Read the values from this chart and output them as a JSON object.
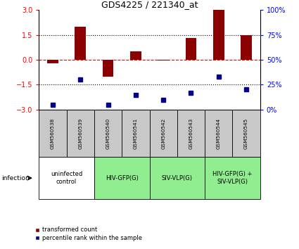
{
  "title": "GDS4225 / 221340_at",
  "samples": [
    "GSM560538",
    "GSM560539",
    "GSM560540",
    "GSM560541",
    "GSM560542",
    "GSM560543",
    "GSM560544",
    "GSM560545"
  ],
  "red_bars": [
    -0.2,
    2.0,
    -1.0,
    0.5,
    -0.05,
    1.3,
    3.0,
    1.5
  ],
  "blue_squares_pct": [
    5,
    30,
    5,
    15,
    10,
    17,
    33,
    20
  ],
  "ylim": [
    -3,
    3
  ],
  "yticks_left": [
    -3,
    -1.5,
    0,
    1.5,
    3
  ],
  "yticks_right_pct": [
    0,
    25,
    50,
    75,
    100
  ],
  "groups": [
    {
      "label": "uninfected\ncontrol",
      "start": 0,
      "end": 2,
      "color": "#ffffff"
    },
    {
      "label": "HIV-GFP(G)",
      "start": 2,
      "end": 4,
      "color": "#90ee90"
    },
    {
      "label": "SIV-VLP(G)",
      "start": 4,
      "end": 6,
      "color": "#90ee90"
    },
    {
      "label": "HIV-GFP(G) +\nSIV-VLP(G)",
      "start": 6,
      "end": 8,
      "color": "#90ee90"
    }
  ],
  "bar_color": "#8b0000",
  "square_color": "#00008b",
  "legend_label_red": "transformed count",
  "legend_label_blue": "percentile rank within the sample",
  "infection_label": "infection",
  "plot_bg_color": "#ffffff",
  "sample_box_color": "#c8c8c8"
}
